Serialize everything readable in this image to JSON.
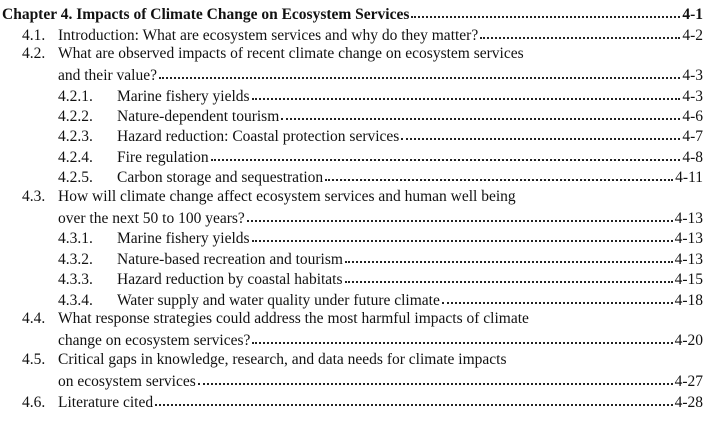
{
  "chapter": {
    "label": "Chapter 4. Impacts of Climate Change on Ecosystem Services",
    "page": "4-1"
  },
  "entries": [
    {
      "num": "4.1.",
      "lines": [
        "Introduction: What are ecosystem services and why do they matter?"
      ],
      "page": "4-2"
    },
    {
      "num": "4.2.",
      "lines": [
        "What are observed impacts of recent climate change on ecosystem services",
        "and their value?"
      ],
      "page": "4-3"
    },
    {
      "num": "4.2.1.",
      "lines": [
        "Marine fishery yields"
      ],
      "page": "4-3"
    },
    {
      "num": "4.2.2.",
      "lines": [
        "Nature-dependent tourism"
      ],
      "page": "4-6"
    },
    {
      "num": "4.2.3.",
      "lines": [
        "Hazard reduction: Coastal protection services"
      ],
      "page": "4-7"
    },
    {
      "num": "4.2.4.",
      "lines": [
        "Fire regulation"
      ],
      "page": "4-8"
    },
    {
      "num": "4.2.5.",
      "lines": [
        "Carbon storage and sequestration"
      ],
      "page": "4-11"
    },
    {
      "num": "4.3.",
      "lines": [
        "How will climate change affect ecosystem services and human well being",
        "over the next 50 to 100 years?"
      ],
      "page": "4-13"
    },
    {
      "num": "4.3.1.",
      "lines": [
        "Marine fishery yields"
      ],
      "page": "4-13"
    },
    {
      "num": "4.3.2.",
      "lines": [
        "Nature-based recreation and tourism"
      ],
      "page": "4-13"
    },
    {
      "num": "4.3.3.",
      "lines": [
        "Hazard reduction by coastal habitats"
      ],
      "page": "4-15"
    },
    {
      "num": "4.3.4.",
      "lines": [
        "Water supply and water quality under future climate"
      ],
      "page": "4-18"
    },
    {
      "num": "4.4.",
      "lines": [
        "What response strategies could address the most harmful impacts of climate",
        "change on ecosystem services?"
      ],
      "page": "4-20"
    },
    {
      "num": "4.5.",
      "lines": [
        "Critical gaps in knowledge, research, and data needs for climate impacts",
        "on ecosystem services"
      ],
      "page": "4-27"
    },
    {
      "num": "4.6.",
      "lines": [
        "Literature cited"
      ],
      "page": "4-28"
    }
  ]
}
